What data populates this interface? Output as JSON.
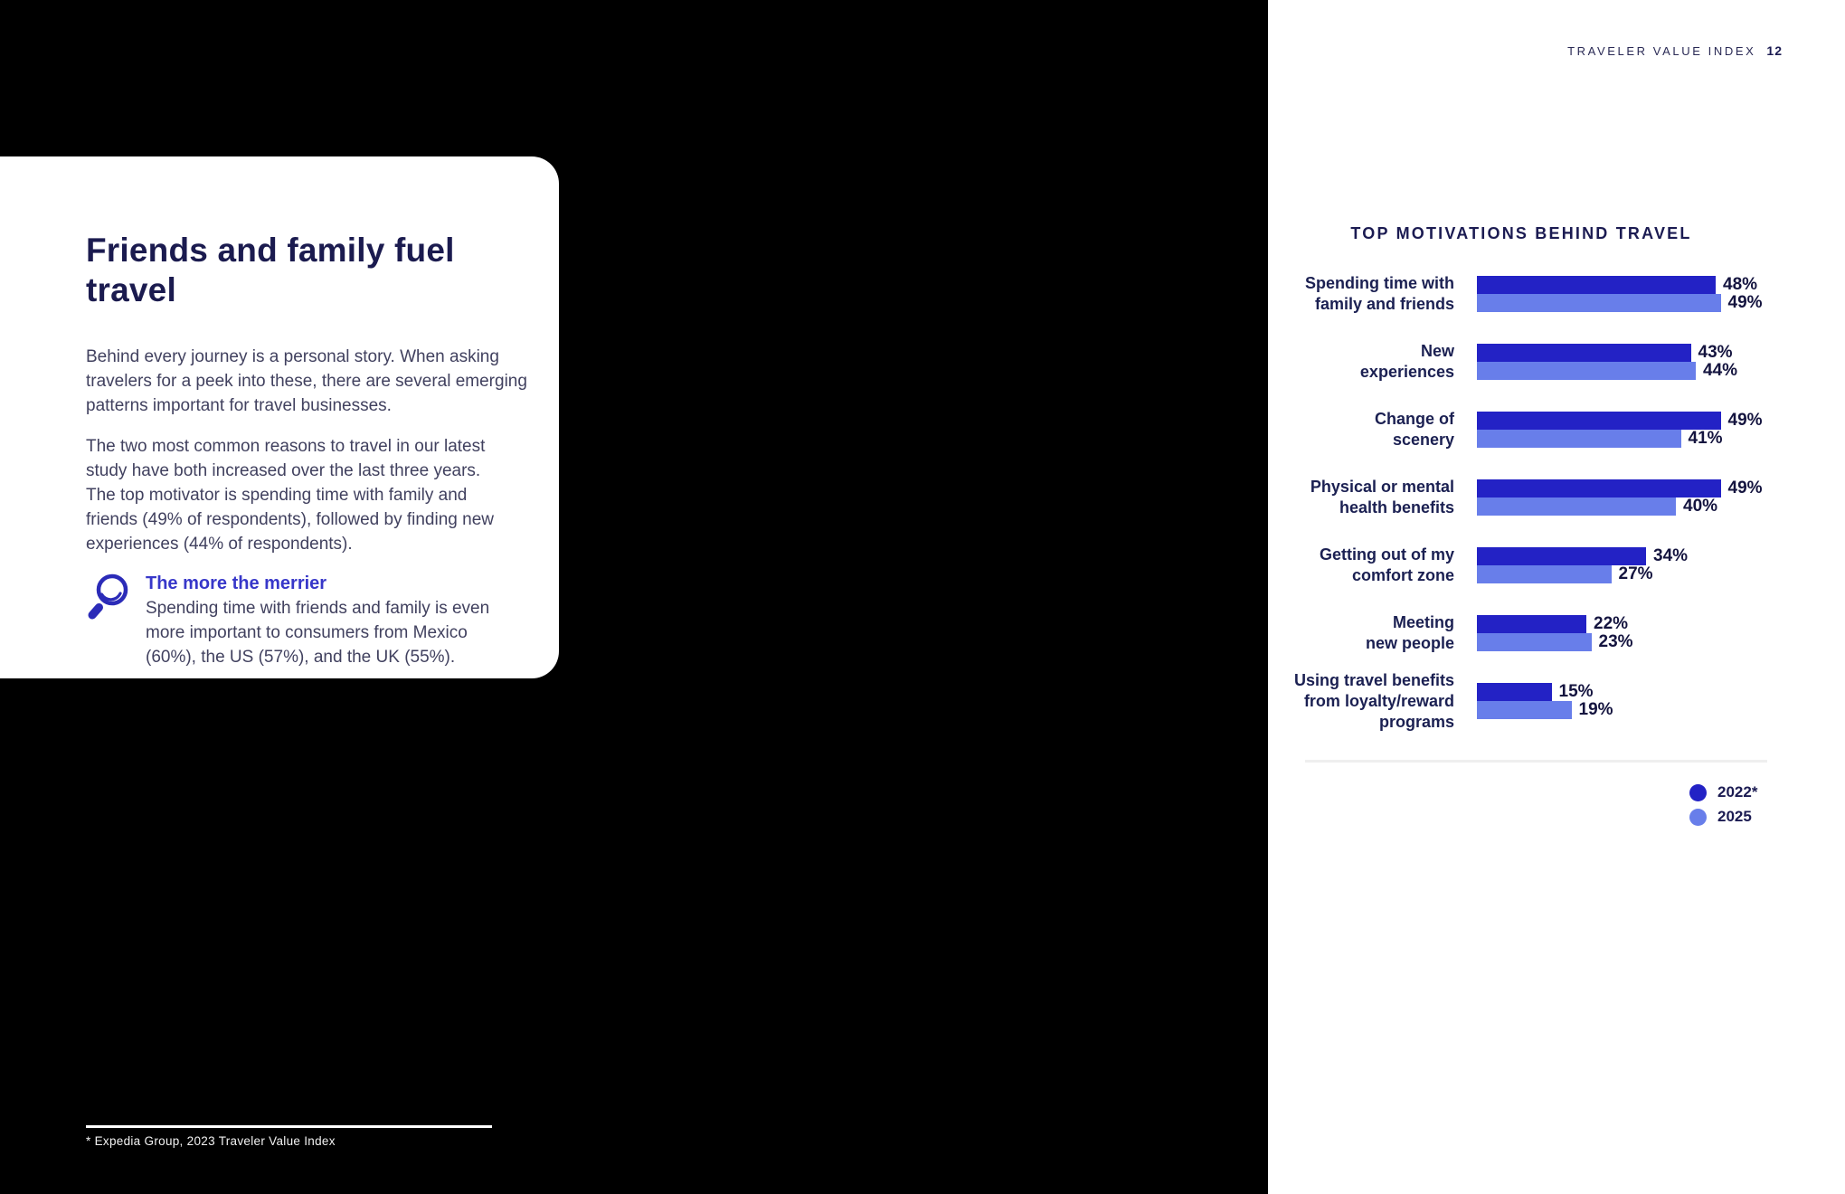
{
  "header": {
    "title": "TRAVELER VALUE INDEX",
    "page_number": "12"
  },
  "card": {
    "title": "Friends and family fuel travel",
    "paragraphs": {
      "p1": "Behind every journey is a personal story. When asking\ntravelers for a peek into these, there are several emerging\npatterns important for travel businesses.",
      "p2": "The two most common reasons to travel in our latest\nstudy have both increased over the last three years.\nThe top motivator is spending time with family and\nfriends (49% of respondents), followed by finding new\nexperiences (44% of respondents)."
    },
    "callout": {
      "icon": "magnifier-icon",
      "heading": "The more the merrier",
      "text": "Spending time with friends and family is even\nmore important to consumers from Mexico\n(60%), the US (57%), and the UK (55%)."
    }
  },
  "footnote": "* Expedia Group, 2023 Traveler Value Index",
  "colors": {
    "panel_black": "#000000",
    "navy_text": "#1B1B4F",
    "body_text": "#41415F",
    "callout_blue": "#3737C9",
    "icon_indigo": "#2B2BB8",
    "bar_2022": "#2322C5",
    "bar_2025": "#687EEA",
    "divider_gray": "#EFEFEF"
  },
  "chart_data": {
    "type": "bar",
    "orientation": "horizontal",
    "title": "TOP MOTIVATIONS BEHIND TRAVEL",
    "categories": [
      "Spending time with family and friends",
      "New experiences",
      "Change of scenery",
      "Physical or mental health benefits",
      "Getting out of my comfort zone",
      "Meeting new people",
      "Using travel benefits from loyalty/reward programs"
    ],
    "category_label_lines": [
      [
        "Spending time with",
        "family and friends"
      ],
      [
        "New",
        "experiences"
      ],
      [
        "Change of",
        "scenery"
      ],
      [
        "Physical or mental",
        "health benefits"
      ],
      [
        "Getting out of my",
        "comfort zone"
      ],
      [
        "Meeting",
        "new people"
      ],
      [
        "Using travel benefits",
        "from loyalty/reward",
        "programs"
      ]
    ],
    "series": [
      {
        "name": "2022*",
        "color": "#2322C5",
        "values": [
          48,
          43,
          49,
          49,
          34,
          22,
          15
        ]
      },
      {
        "name": "2025",
        "color": "#687EEA",
        "values": [
          49,
          44,
          41,
          40,
          27,
          23,
          19
        ]
      }
    ],
    "value_suffix": "%",
    "xlim": [
      0,
      55
    ],
    "grid": false,
    "legend_position": "bottom-right"
  }
}
